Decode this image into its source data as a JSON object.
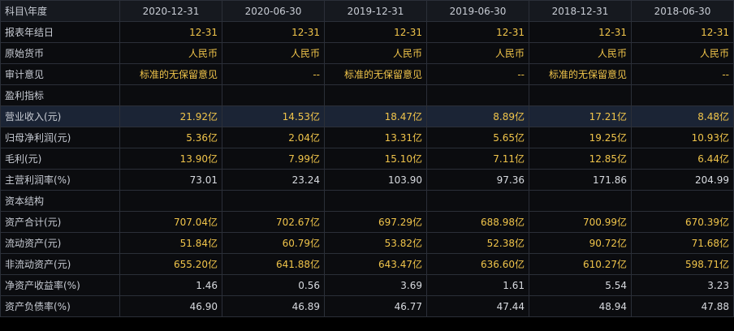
{
  "header": {
    "label": "科目\\年度",
    "periods": [
      "2020-12-31",
      "2020-06-30",
      "2019-12-31",
      "2019-06-30",
      "2018-12-31",
      "2018-06-30"
    ]
  },
  "rows": [
    {
      "label": "报表年结日",
      "values": [
        "12-31",
        "12-31",
        "12-31",
        "12-31",
        "12-31",
        "12-31"
      ],
      "color": "yellow"
    },
    {
      "label": "原始货币",
      "values": [
        "人民币",
        "人民币",
        "人民币",
        "人民币",
        "人民币",
        "人民币"
      ],
      "color": "yellow"
    },
    {
      "label": "审计意见",
      "values": [
        "标准的无保留意见",
        "--",
        "标准的无保留意见",
        "--",
        "标准的无保留意见",
        "--"
      ],
      "color": "yellow"
    },
    {
      "label": "盈利指标",
      "section": true
    },
    {
      "label": "营业收入(元)",
      "values": [
        "21.92亿",
        "14.53亿",
        "18.47亿",
        "8.89亿",
        "17.21亿",
        "8.48亿"
      ],
      "color": "yellow",
      "highlight": true
    },
    {
      "label": "归母净利润(元)",
      "values": [
        "5.36亿",
        "2.04亿",
        "13.31亿",
        "5.65亿",
        "19.25亿",
        "10.93亿"
      ],
      "color": "yellow"
    },
    {
      "label": "毛利(元)",
      "values": [
        "13.90亿",
        "7.99亿",
        "15.10亿",
        "7.11亿",
        "12.85亿",
        "6.44亿"
      ],
      "color": "yellow"
    },
    {
      "label": "主营利润率(%)",
      "values": [
        "73.01",
        "23.24",
        "103.90",
        "97.36",
        "171.86",
        "204.99"
      ],
      "color": "white"
    },
    {
      "label": "资本结构",
      "section": true
    },
    {
      "label": "资产合计(元)",
      "values": [
        "707.04亿",
        "702.67亿",
        "697.29亿",
        "688.98亿",
        "700.99亿",
        "670.39亿"
      ],
      "color": "yellow"
    },
    {
      "label": "流动资产(元)",
      "values": [
        "51.84亿",
        "60.79亿",
        "53.82亿",
        "52.38亿",
        "90.72亿",
        "71.68亿"
      ],
      "color": "yellow"
    },
    {
      "label": "非流动资产(元)",
      "values": [
        "655.20亿",
        "641.88亿",
        "643.47亿",
        "636.60亿",
        "610.27亿",
        "598.71亿"
      ],
      "color": "yellow"
    },
    {
      "label": "净资产收益率(%)",
      "values": [
        "1.46",
        "0.56",
        "3.69",
        "1.61",
        "5.54",
        "3.23"
      ],
      "color": "white"
    },
    {
      "label": "资产负债率(%)",
      "values": [
        "46.90",
        "46.89",
        "46.77",
        "47.44",
        "48.94",
        "47.88"
      ],
      "color": "white"
    }
  ]
}
